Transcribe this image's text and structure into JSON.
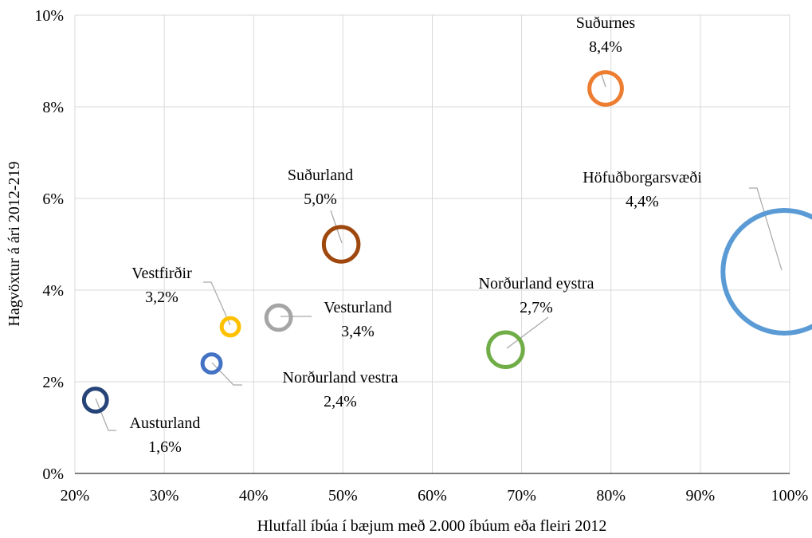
{
  "chart_data": {
    "type": "bubble",
    "title": "",
    "xlabel": "Hlutfall íbúa í bæjum með 2.000 íbúum eða fleiri 2012",
    "ylabel": "Hagvöxtur á ári 2012-219",
    "xlim": [
      20,
      100
    ],
    "ylim": [
      0,
      10
    ],
    "x_ticks": [
      {
        "value": 20,
        "label": "20%"
      },
      {
        "value": 30,
        "label": "30%"
      },
      {
        "value": 40,
        "label": "40%"
      },
      {
        "value": 50,
        "label": "50%"
      },
      {
        "value": 60,
        "label": "60%"
      },
      {
        "value": 70,
        "label": "70%"
      },
      {
        "value": 80,
        "label": "80%"
      },
      {
        "value": 90,
        "label": "90%"
      },
      {
        "value": 100,
        "label": "100%"
      }
    ],
    "y_ticks": [
      {
        "value": 0,
        "label": "0%"
      },
      {
        "value": 2,
        "label": "2%"
      },
      {
        "value": 4,
        "label": "4%"
      },
      {
        "value": 6,
        "label": "6%"
      },
      {
        "value": 8,
        "label": "8%"
      },
      {
        "value": 10,
        "label": "10%"
      }
    ],
    "grid": true,
    "legend": "none",
    "points": [
      {
        "name": "Höfuðborgarsvæði",
        "value_label": "4,4%",
        "x": 99.4,
        "y": 4.4,
        "size": 100,
        "color": "#5b9bd5"
      },
      {
        "name": "Suðurnes",
        "value_label": "8,4%",
        "x": 79.4,
        "y": 8.4,
        "size": 7,
        "color": "#ed7d31"
      },
      {
        "name": "Suðurland",
        "value_label": "5,0%",
        "x": 49.8,
        "y": 5.0,
        "size": 8,
        "color": "#9e480e"
      },
      {
        "name": "Norðurland eystra",
        "value_label": "2,7%",
        "x": 68.2,
        "y": 2.7,
        "size": 8,
        "color": "#70ad47"
      },
      {
        "name": "Vesturland",
        "value_label": "3,4%",
        "x": 42.8,
        "y": 3.4,
        "size": 4,
        "color": "#a5a5a5"
      },
      {
        "name": "Vestfirðir",
        "value_label": "3,2%",
        "x": 37.4,
        "y": 3.2,
        "size": 2,
        "color": "#ffc000"
      },
      {
        "name": "Norðurland vestra",
        "value_label": "2,4%",
        "x": 35.3,
        "y": 2.4,
        "size": 2.2,
        "color": "#4472c4"
      },
      {
        "name": "Austurland",
        "value_label": "1,6%",
        "x": 22.3,
        "y": 1.6,
        "size": 3.5,
        "color": "#264478"
      }
    ]
  }
}
